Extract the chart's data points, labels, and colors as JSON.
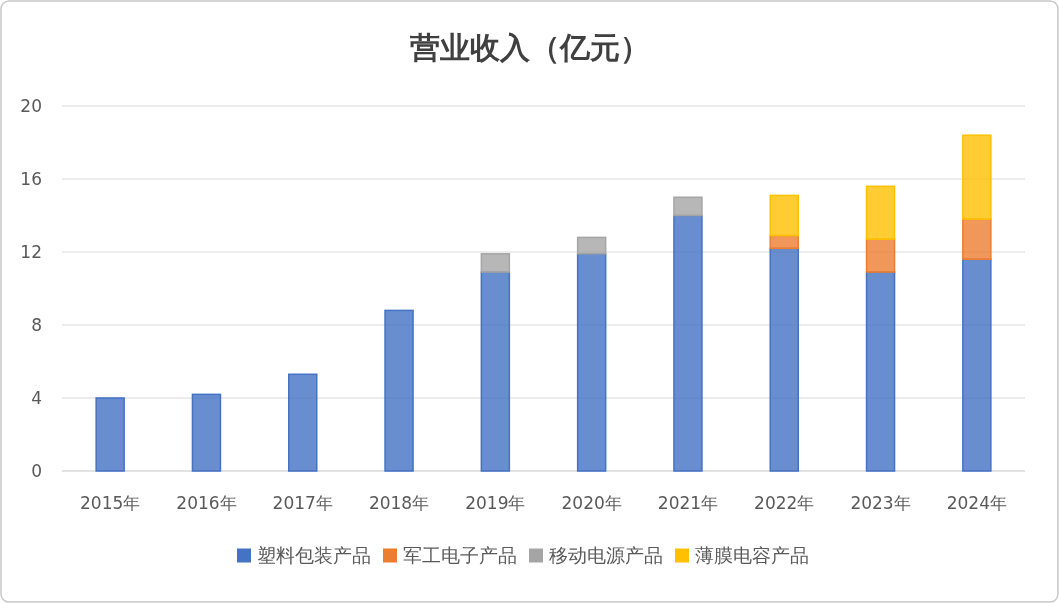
{
  "chart_data": {
    "type": "bar",
    "title": "营业收入（亿元）",
    "stacked": true,
    "categories": [
      "2015年",
      "2016年",
      "2017年",
      "2018年",
      "2019年",
      "2020年",
      "2021年",
      "2022年",
      "2023年",
      "2024年"
    ],
    "series": [
      {
        "name": "塑料包装产品",
        "color": "#4472c4",
        "values": [
          4.0,
          4.2,
          5.3,
          8.8,
          10.9,
          11.9,
          14.0,
          12.2,
          10.9,
          11.6
        ]
      },
      {
        "name": "军工电子产品",
        "color": "#ed7d31",
        "values": [
          null,
          null,
          null,
          null,
          null,
          null,
          null,
          0.7,
          1.8,
          2.2
        ]
      },
      {
        "name": "移动电源产品",
        "color": "#a5a5a5",
        "values": [
          null,
          null,
          null,
          null,
          1.0,
          0.9,
          1.0,
          null,
          null,
          null
        ]
      },
      {
        "name": "薄膜电容产品",
        "color": "#ffc000",
        "values": [
          null,
          null,
          null,
          null,
          null,
          null,
          null,
          2.2,
          2.9,
          4.6
        ]
      }
    ],
    "ylim": [
      0,
      20
    ],
    "yticks": [
      0,
      4,
      8,
      12,
      16,
      20
    ],
    "grid": "y",
    "legend": "bottom"
  }
}
